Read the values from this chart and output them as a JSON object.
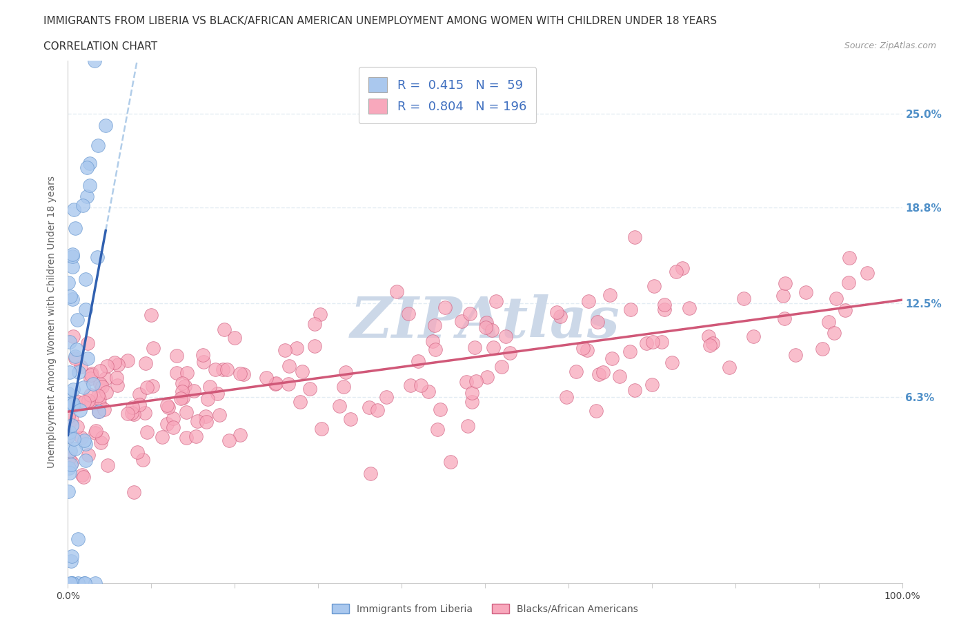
{
  "title_line1": "IMMIGRANTS FROM LIBERIA VS BLACK/AFRICAN AMERICAN UNEMPLOYMENT AMONG WOMEN WITH CHILDREN UNDER 18 YEARS",
  "title_line2": "CORRELATION CHART",
  "source_text": "Source: ZipAtlas.com",
  "ylabel": "Unemployment Among Women with Children Under 18 years",
  "x_min": 0.0,
  "x_max": 1.0,
  "y_min": -0.06,
  "y_max": 0.285,
  "y_ticks": [
    0.063,
    0.125,
    0.188,
    0.25
  ],
  "y_tick_labels": [
    "6.3%",
    "12.5%",
    "18.8%",
    "25.0%"
  ],
  "x_ticks": [
    0.0,
    0.1,
    0.2,
    0.3,
    0.4,
    0.5,
    0.6,
    0.7,
    0.8,
    0.9,
    1.0
  ],
  "x_tick_labels": [
    "0.0%",
    "",
    "",
    "",
    "",
    "",
    "",
    "",
    "",
    "",
    "100.0%"
  ],
  "series_blue": {
    "color": "#aac8ee",
    "edge_color": "#6898d0",
    "trend_color": "#3060b0",
    "trend_color_dash": "#90b8e0",
    "N": 59
  },
  "series_pink": {
    "color": "#f8a8bc",
    "edge_color": "#d06080",
    "trend_color": "#d05878",
    "N": 196
  },
  "legend_patch_blue": "#aac8ee",
  "legend_patch_pink": "#f8a8bc",
  "legend_label_blue": "R =  0.415   N =  59",
  "legend_label_pink": "R =  0.804   N = 196",
  "legend_text_color": "#4070c0",
  "watermark_text": "ZIPAtlas",
  "watermark_color": "#ccd8e8",
  "background_color": "#ffffff",
  "grid_color": "#dde8f0",
  "title_fontsize": 11,
  "subtitle_fontsize": 11,
  "axis_label_fontsize": 10,
  "tick_fontsize": 10,
  "legend_fontsize": 13,
  "right_tick_color": "#5090c8",
  "bottom_legend_labels": [
    "Immigrants from Liberia",
    "Blacks/African Americans"
  ]
}
